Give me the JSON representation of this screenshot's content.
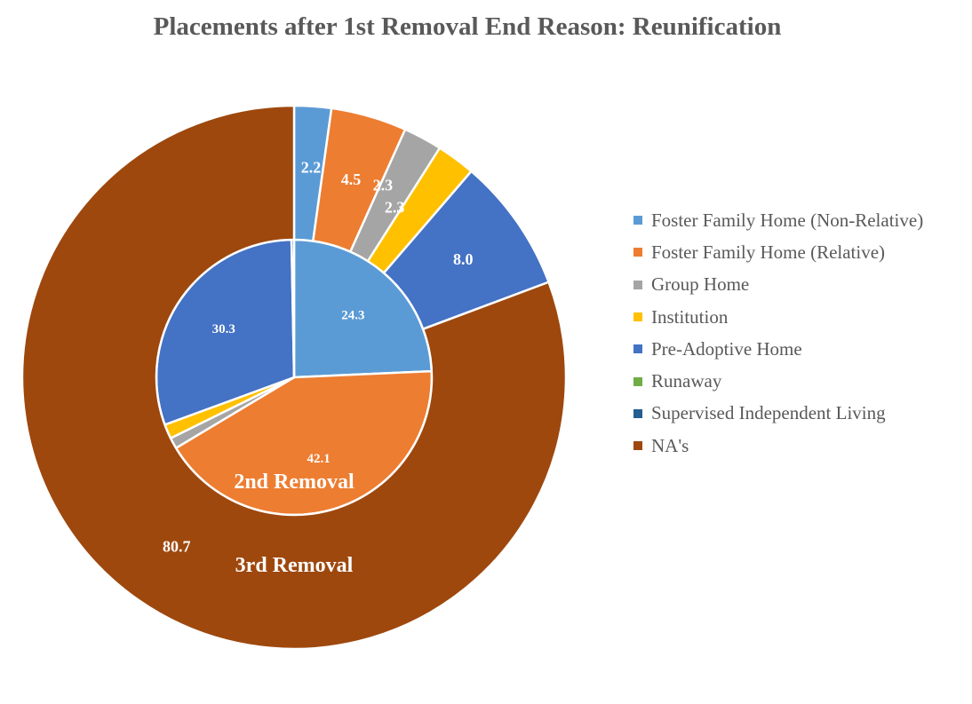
{
  "chart_data": {
    "type": "pie",
    "subtype": "nested-donut",
    "title": "Placements after 1st Removal End Reason: Reunification",
    "categories": [
      "Foster Family Home (Non-Relative)",
      "Foster Family Home (Relative)",
      "Group Home",
      "Institution",
      "Pre-Adoptive Home",
      "Runaway",
      "Supervised Independent Living",
      "NA's"
    ],
    "colors": [
      "#5B9BD5",
      "#ED7D31",
      "#A5A5A5",
      "#FFC000",
      "#4472C4",
      "#70AD47",
      "#255E91",
      "#9E480E"
    ],
    "series": [
      {
        "name": "2nd Removal",
        "values": [
          24.3,
          42.1,
          1.3,
          1.7,
          30.3,
          0,
          0.3,
          0
        ],
        "data_labels": [
          "24.3",
          "42.1",
          "1.3",
          "1.7",
          "30.3",
          "",
          "0.3",
          ""
        ]
      },
      {
        "name": "3rd Removal",
        "values": [
          2.2,
          4.5,
          2.3,
          2.3,
          8.0,
          0,
          0,
          80.7
        ],
        "data_labels": [
          "2.2",
          "4.5",
          "2.3",
          "2.3",
          "8.0",
          "",
          "",
          "80.7"
        ]
      }
    ],
    "legend_position": "right"
  }
}
